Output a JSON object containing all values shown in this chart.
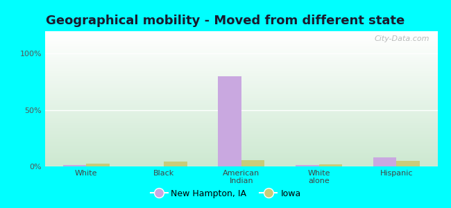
{
  "title": "Geographical mobility - Moved from different state",
  "categories": [
    "White",
    "Black",
    "American\nIndian",
    "White\nalone",
    "Hispanic"
  ],
  "new_hampton_values": [
    1.5,
    0.0,
    80.0,
    1.2,
    8.0
  ],
  "iowa_values": [
    2.5,
    4.5,
    5.5,
    2.0,
    5.0
  ],
  "new_hampton_color": "#c9a8e0",
  "iowa_color": "#c8cc7a",
  "ylim": [
    0,
    120
  ],
  "yticks": [
    0,
    50,
    100
  ],
  "ytick_labels": [
    "0%",
    "50%",
    "100%"
  ],
  "background_color": "#00ffff",
  "plot_bg_top_color": "#f0f8f0",
  "plot_bg_bottom_color": "#d0ecd8",
  "legend_labels": [
    "New Hampton, IA",
    "Iowa"
  ],
  "bar_width": 0.3,
  "title_fontsize": 13,
  "watermark": "City-Data.com"
}
